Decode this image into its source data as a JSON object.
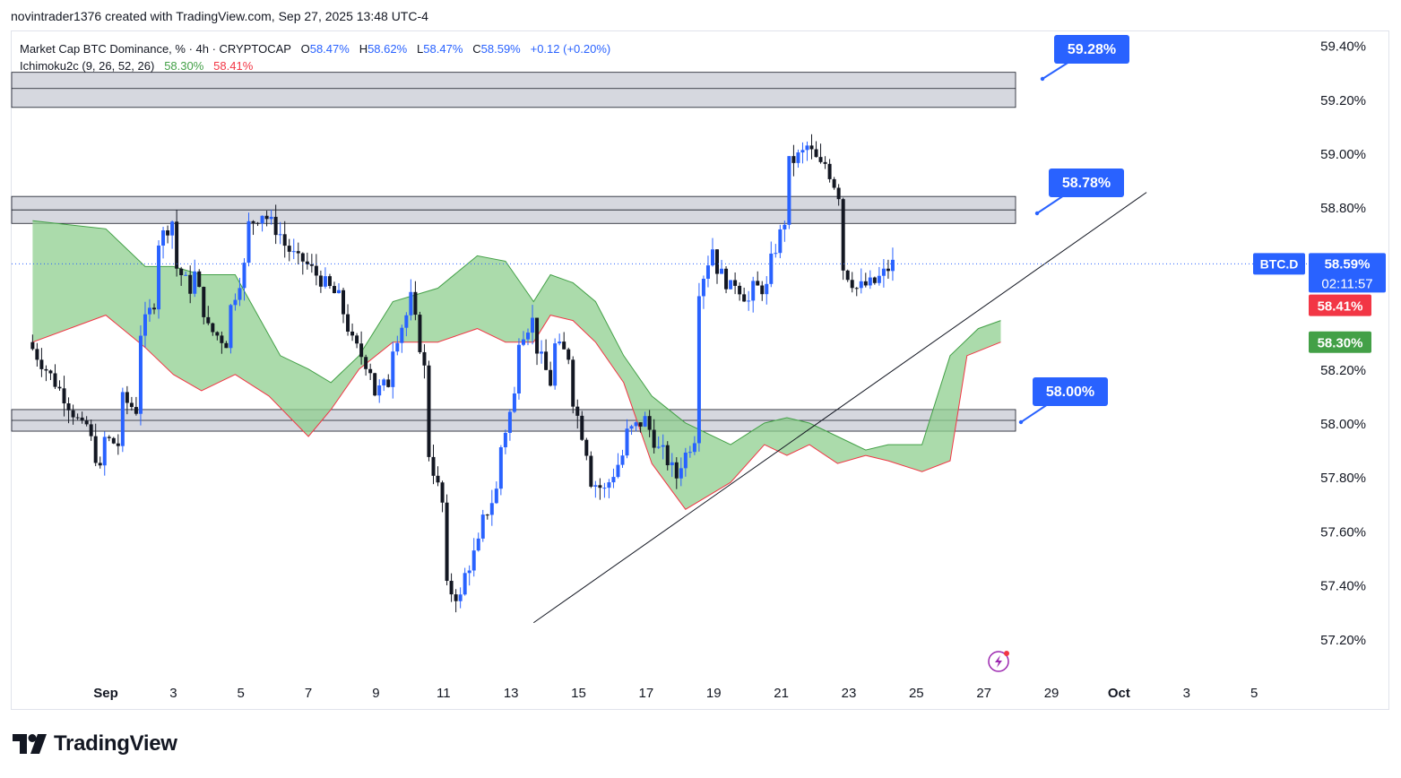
{
  "header": {
    "attribution": "novintrader1376 created with TradingView.com, Sep 27, 2025 13:48 UTC-4"
  },
  "legend": {
    "symbol": "Market Cap BTC Dominance, % · 4h · CRYPTOCAP",
    "o_label": "O",
    "o_value": "58.47%",
    "h_label": "H",
    "h_value": "58.62%",
    "l_label": "L",
    "l_value": "58.47%",
    "c_label": "C",
    "c_value": "58.59%",
    "change": "+0.12 (+0.20%)",
    "indicator": "Ichimoku2c (9, 26, 52, 26)",
    "ind_value1": "58.30%",
    "ind_value2": "58.41%"
  },
  "brand": {
    "name": "TradingView"
  },
  "chart_data": {
    "type": "candlestick",
    "symbol": "BTC.D",
    "timeframe": "4h",
    "ylim": [
      57.1,
      59.45
    ],
    "xlim": [
      -12,
      201
    ],
    "y_ticks": [
      "59.40%",
      "59.20%",
      "59.00%",
      "58.80%",
      "58.20%",
      "58.00%",
      "57.80%",
      "57.60%",
      "57.40%",
      "57.20%"
    ],
    "x_ticks": [
      {
        "label": "Sep",
        "t": 1
      },
      {
        "label": "3",
        "t": 13
      },
      {
        "label": "5",
        "t": 25
      },
      {
        "label": "7",
        "t": 37
      },
      {
        "label": "9",
        "t": 49
      },
      {
        "label": "11",
        "t": 61
      },
      {
        "label": "13",
        "t": 73
      },
      {
        "label": "15",
        "t": 85
      },
      {
        "label": "17",
        "t": 97
      },
      {
        "label": "19",
        "t": 109
      },
      {
        "label": "21",
        "t": 121
      },
      {
        "label": "23",
        "t": 133
      },
      {
        "label": "25",
        "t": 145
      },
      {
        "label": "27",
        "t": 157
      },
      {
        "label": "29",
        "t": 169
      },
      {
        "label": "Oct",
        "t": 181
      },
      {
        "label": "3",
        "t": 193
      },
      {
        "label": "5",
        "t": 205
      }
    ],
    "colors": {
      "up": "#2962ff",
      "down": "#131722",
      "cloud": "#8fcf8f",
      "cloud_edge_green": "#43a047",
      "cloud_edge_red": "#f23645",
      "zone_fill": "#d1d4dc",
      "zone_edge": "#131722",
      "label_bg": "#2962ff"
    },
    "ohlc_anchors": [
      [
        58.3,
        58.2
      ],
      [
        58.2,
        58.1
      ],
      [
        58.1,
        57.98
      ],
      [
        58.05,
        57.82
      ],
      [
        57.95,
        57.92
      ],
      [
        58.1,
        58.05
      ],
      [
        58.3,
        58.45
      ],
      [
        58.65,
        58.75
      ],
      [
        58.6,
        58.5
      ],
      [
        58.62,
        58.35
      ],
      [
        58.35,
        58.3
      ],
      [
        58.38,
        58.58
      ],
      [
        58.72,
        58.78
      ],
      [
        58.78,
        58.7
      ],
      [
        58.68,
        58.6
      ],
      [
        58.62,
        58.55
      ],
      [
        58.55,
        58.48
      ],
      [
        58.52,
        58.3
      ],
      [
        58.3,
        58.2
      ],
      [
        58.1,
        58.15
      ],
      [
        58.25,
        58.4
      ],
      [
        58.55,
        58.2
      ],
      [
        57.95,
        57.7
      ],
      [
        57.4,
        57.35
      ],
      [
        57.4,
        57.55
      ],
      [
        57.6,
        57.75
      ],
      [
        57.85,
        58.1
      ],
      [
        58.3,
        58.38
      ],
      [
        58.32,
        58.15
      ],
      [
        58.3,
        58.25
      ],
      [
        58.15,
        57.9
      ],
      [
        57.8,
        57.75
      ],
      [
        57.75,
        57.88
      ],
      [
        57.95,
        58.0
      ],
      [
        58.05,
        57.9
      ],
      [
        57.92,
        57.8
      ],
      [
        57.82,
        57.95
      ],
      [
        58.45,
        58.65
      ],
      [
        58.6,
        58.5
      ],
      [
        58.55,
        58.45
      ],
      [
        58.5,
        58.5
      ],
      [
        58.55,
        58.75
      ],
      [
        58.95,
        59.0
      ],
      [
        59.05,
        58.95
      ],
      [
        59.0,
        58.85
      ],
      [
        58.6,
        58.5
      ],
      [
        58.5,
        58.52
      ],
      [
        58.52,
        58.59
      ]
    ],
    "support_resistance_zones": [
      {
        "low": 59.17,
        "mid": 59.24,
        "high": 59.3
      },
      {
        "low": 58.74,
        "mid": 58.79,
        "high": 58.84
      },
      {
        "low": 57.97,
        "mid": 58.01,
        "high": 58.05
      }
    ],
    "trendline": [
      [
        77,
        57.26
      ],
      [
        162,
        58.39
      ]
    ],
    "price_labels": [
      {
        "text": "59.28%",
        "t": 162
      },
      {
        "text": "58.78%",
        "t": 162
      },
      {
        "text": "58.00%",
        "t": 162
      }
    ],
    "last_price": {
      "symbol": "BTC.D",
      "value": "58.59%",
      "countdown": "02:11:57",
      "y": 58.59
    },
    "cloud_labels": [
      {
        "value": "58.41%",
        "color": "#f23645",
        "y": 58.41
      },
      {
        "value": "58.30%",
        "color": "#43a047",
        "y": 58.3
      }
    ],
    "cloud_upper": [
      [
        -12,
        58.75
      ],
      [
        1,
        58.72
      ],
      [
        8,
        58.58
      ],
      [
        13,
        58.58
      ],
      [
        18,
        58.55
      ],
      [
        24,
        58.55
      ],
      [
        32,
        58.25
      ],
      [
        37,
        58.2
      ],
      [
        41,
        58.15
      ],
      [
        46,
        58.25
      ],
      [
        52,
        58.45
      ],
      [
        60,
        58.5
      ],
      [
        67,
        58.62
      ],
      [
        72,
        58.6
      ],
      [
        77,
        58.45
      ],
      [
        80,
        58.55
      ],
      [
        84,
        58.52
      ],
      [
        88,
        58.45
      ],
      [
        93,
        58.25
      ],
      [
        98,
        58.1
      ],
      [
        104,
        58.0
      ],
      [
        112,
        57.92
      ],
      [
        118,
        58.0
      ],
      [
        122,
        58.02
      ],
      [
        126,
        58.0
      ],
      [
        131,
        57.95
      ],
      [
        136,
        57.9
      ],
      [
        140,
        57.92
      ],
      [
        146,
        57.92
      ],
      [
        151,
        58.25
      ],
      [
        156,
        58.35
      ],
      [
        160,
        58.38
      ]
    ],
    "cloud_lower": [
      [
        -12,
        58.3
      ],
      [
        1,
        58.4
      ],
      [
        8,
        58.28
      ],
      [
        13,
        58.18
      ],
      [
        18,
        58.12
      ],
      [
        24,
        58.18
      ],
      [
        30,
        58.1
      ],
      [
        37,
        57.95
      ],
      [
        41,
        58.05
      ],
      [
        46,
        58.2
      ],
      [
        52,
        58.3
      ],
      [
        60,
        58.3
      ],
      [
        67,
        58.35
      ],
      [
        72,
        58.3
      ],
      [
        77,
        58.3
      ],
      [
        80,
        58.4
      ],
      [
        84,
        58.38
      ],
      [
        88,
        58.3
      ],
      [
        93,
        58.15
      ],
      [
        98,
        57.85
      ],
      [
        104,
        57.68
      ],
      [
        112,
        57.78
      ],
      [
        118,
        57.92
      ],
      [
        122,
        57.88
      ],
      [
        126,
        57.92
      ],
      [
        131,
        57.85
      ],
      [
        136,
        57.88
      ],
      [
        140,
        57.86
      ],
      [
        146,
        57.82
      ],
      [
        151,
        57.86
      ],
      [
        154,
        58.25
      ],
      [
        160,
        58.3
      ]
    ]
  }
}
